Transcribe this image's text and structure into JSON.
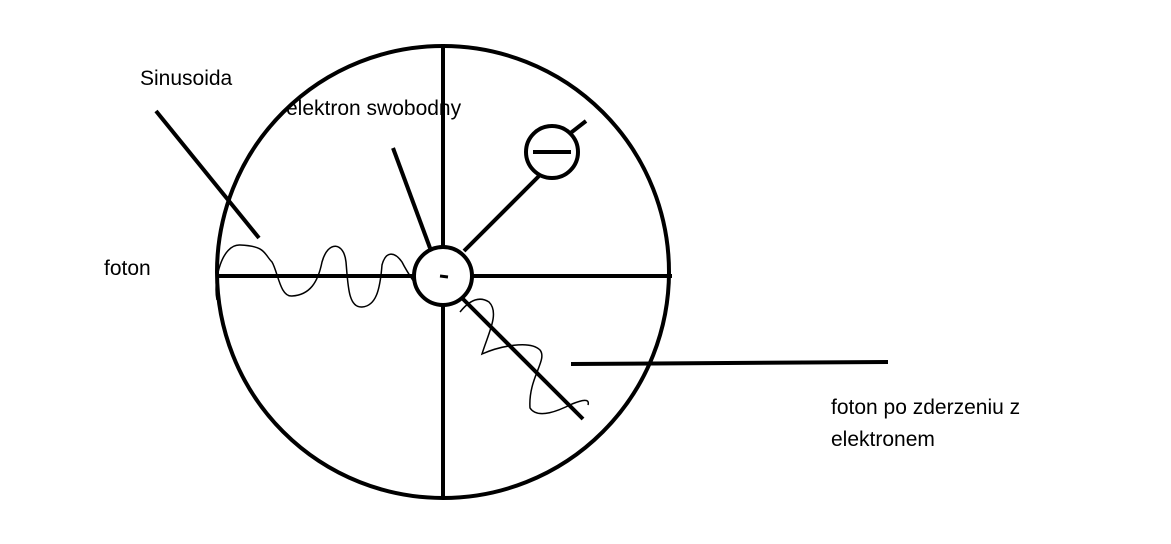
{
  "labels": {
    "sinusoid": "Sinusoida",
    "free_electron": "elektron swobodny",
    "photon": "foton",
    "scattered_photon_line1": "foton po zderzeniu z",
    "scattered_photon_line2": "elektronem"
  },
  "symbols": {
    "electron_charge_large": "−",
    "electron_charge_small": "-"
  },
  "colors": {
    "ink": "#000000",
    "background": "#ffffff"
  }
}
